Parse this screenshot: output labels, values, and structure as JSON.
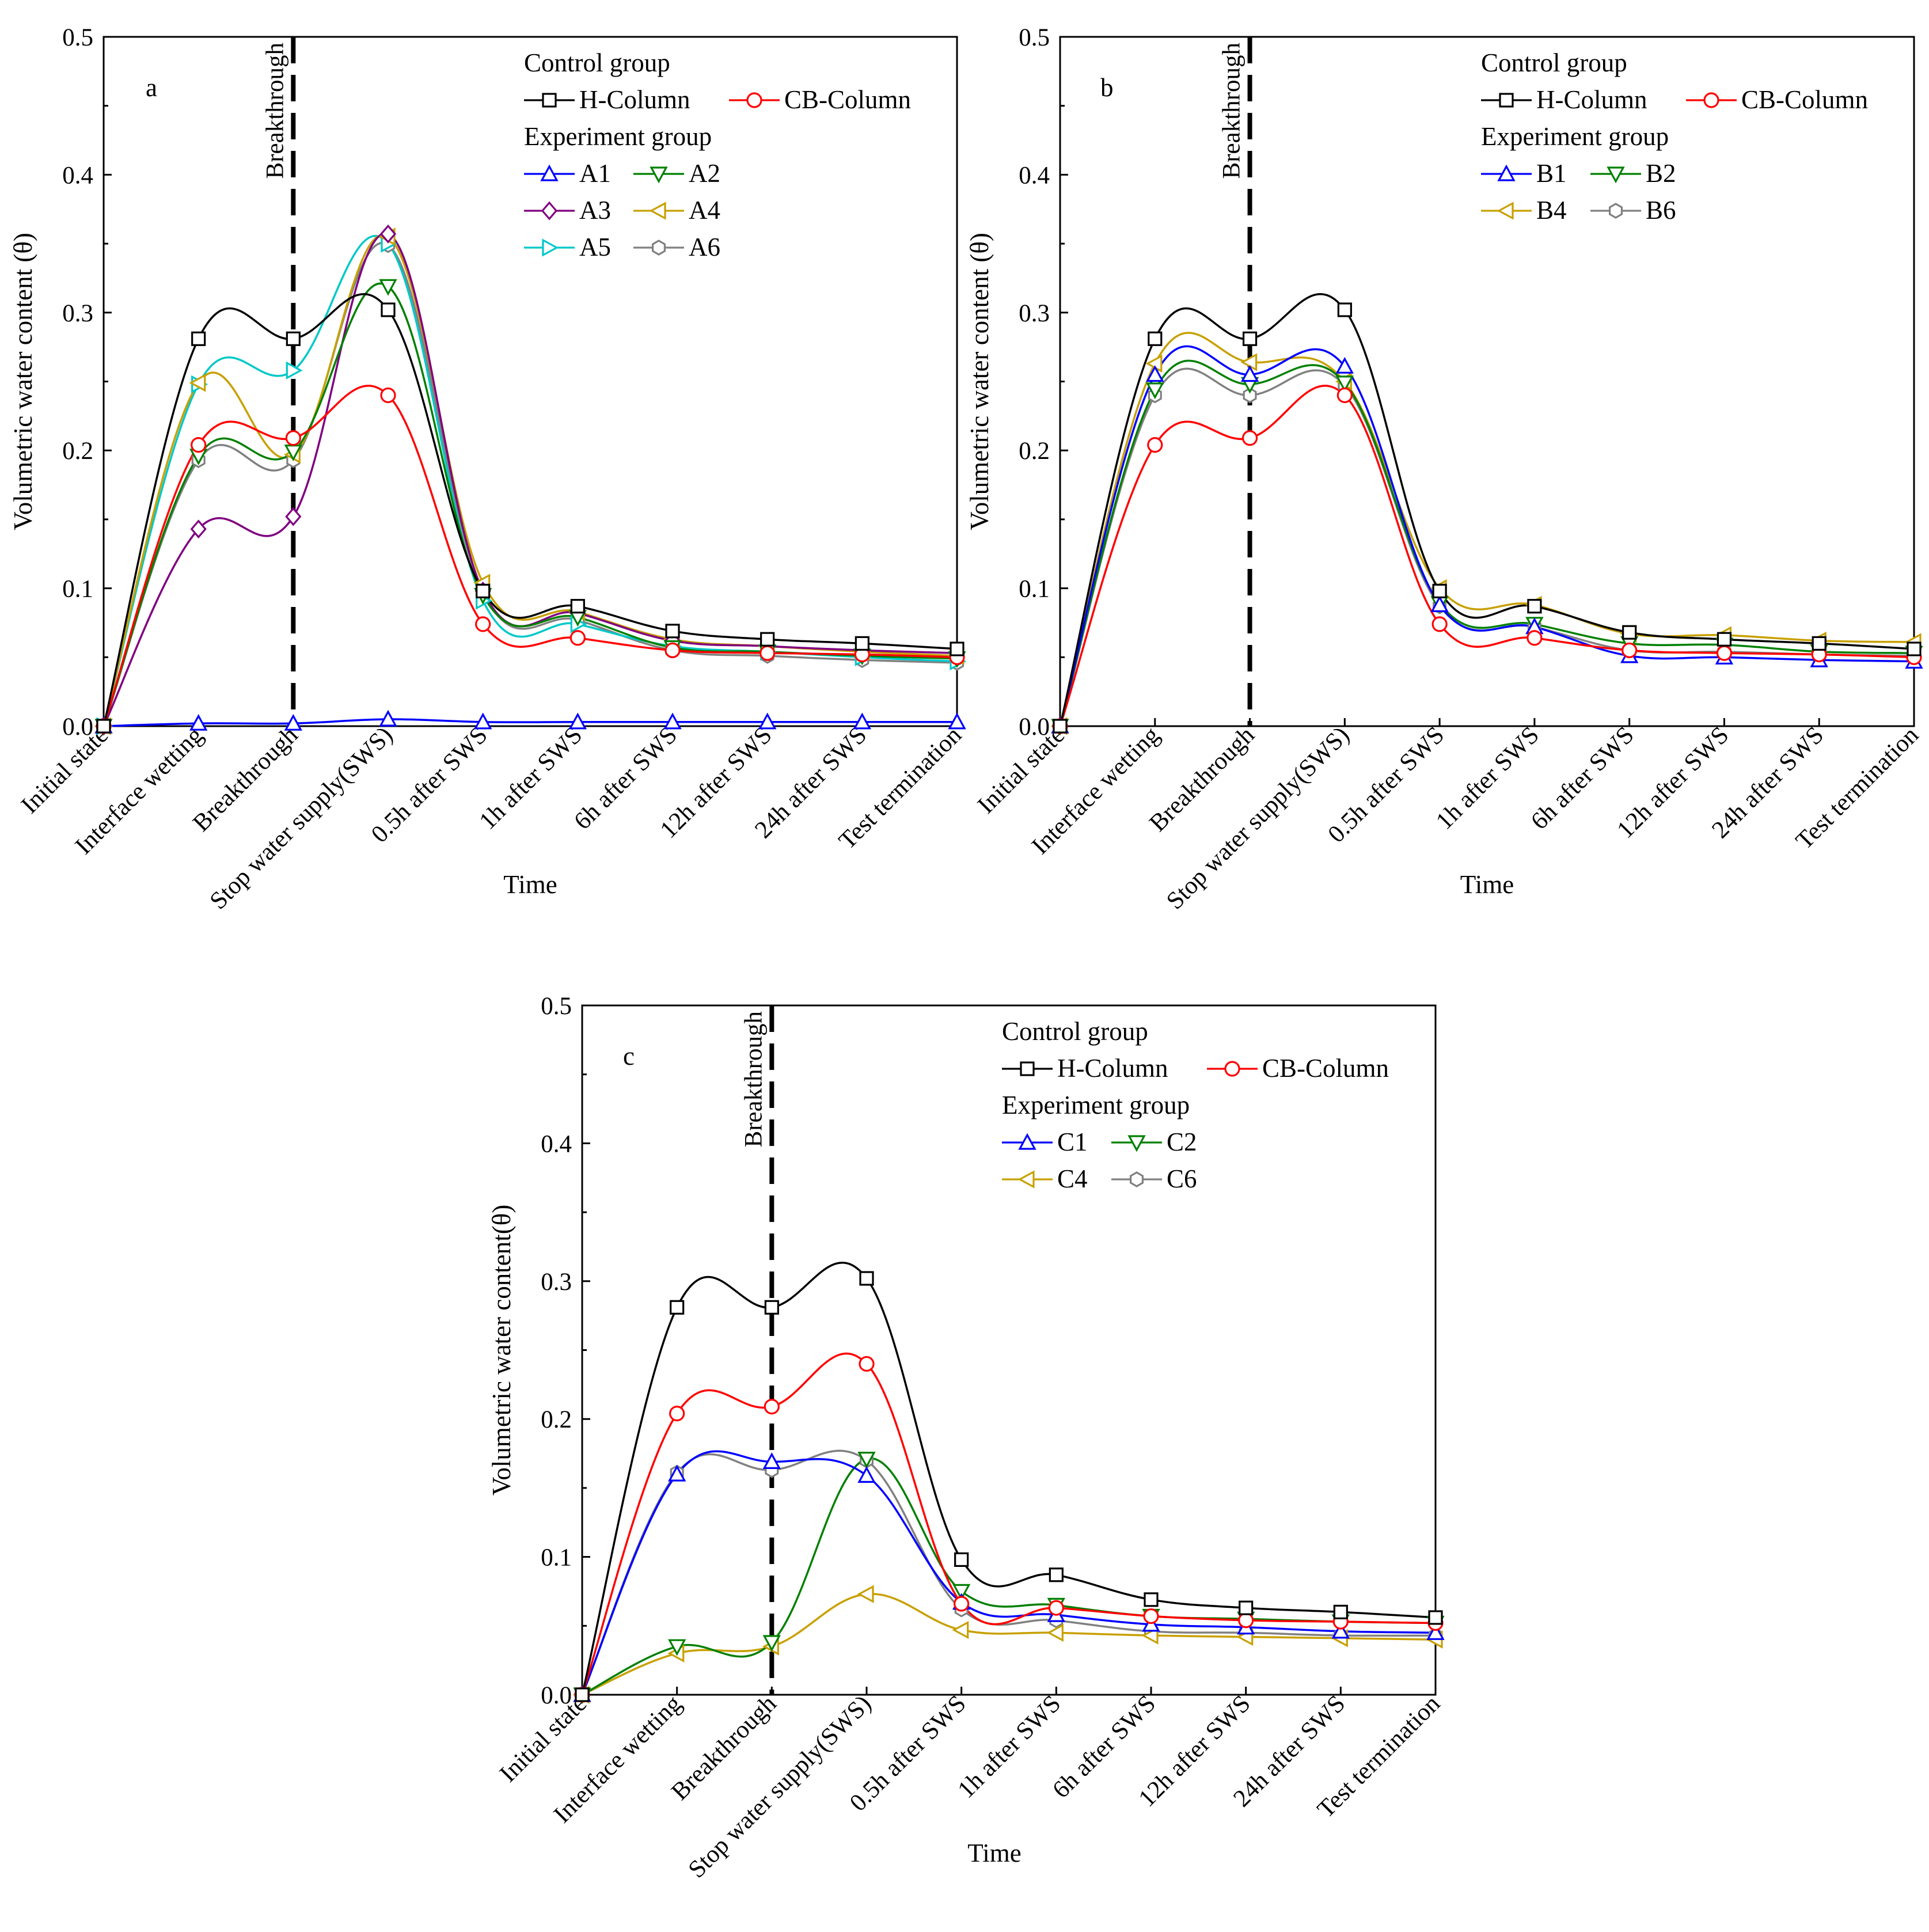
{
  "chart_data": [
    {
      "type": "line",
      "panel_label": "a",
      "title": "",
      "xlabel": "Time",
      "ylabel": "Volumetric water content (θ)",
      "ylim": [
        0,
        0.5
      ],
      "yticks": [
        "0.0",
        "0.1",
        "0.2",
        "0.3",
        "0.4",
        "0.5"
      ],
      "categories": [
        "Initial state",
        "Interface wetting",
        "Breakthrough",
        "Stop water supply(SWS)",
        "0.5h after SWS",
        "1h after SWS",
        "6h after SWS",
        "12h after SWS",
        "24h after SWS",
        "Test termination"
      ],
      "vline": {
        "label": "Breakthrough",
        "x_index": 2
      },
      "legend": {
        "position": "top-right",
        "control_title": "Control group",
        "experiment_title": "Experiment group",
        "control_names": [
          "H-Column",
          "CB-Column"
        ],
        "experiment_rows": [
          [
            "A1",
            "A2"
          ],
          [
            "A3",
            "A4"
          ],
          [
            "A5",
            "A6"
          ]
        ]
      },
      "series": [
        {
          "name": "H-Column",
          "color": "#000000",
          "marker": "square",
          "values": [
            0,
            0.281,
            0.281,
            0.302,
            0.098,
            0.087,
            0.069,
            0.063,
            0.06,
            0.056
          ]
        },
        {
          "name": "CB-Column",
          "color": "#ff0000",
          "marker": "circle",
          "values": [
            0,
            0.204,
            0.209,
            0.24,
            0.074,
            0.064,
            0.055,
            0.053,
            0.052,
            0.05
          ]
        },
        {
          "name": "A1",
          "color": "#0000ff",
          "marker": "triangle-up",
          "values": [
            0,
            0.002,
            0.002,
            0.005,
            0.003,
            0.003,
            0.003,
            0.003,
            0.003,
            0.003
          ]
        },
        {
          "name": "A2",
          "color": "#008000",
          "marker": "triangle-down",
          "values": [
            0,
            0.196,
            0.199,
            0.319,
            0.095,
            0.079,
            0.057,
            0.054,
            0.051,
            0.049
          ]
        },
        {
          "name": "A3",
          "color": "#800080",
          "marker": "diamond",
          "values": [
            0,
            0.143,
            0.152,
            0.357,
            0.098,
            0.082,
            0.062,
            0.058,
            0.055,
            0.053
          ]
        },
        {
          "name": "A4",
          "color": "#c8a000",
          "marker": "triangle-left",
          "values": [
            0,
            0.249,
            0.197,
            0.355,
            0.104,
            0.083,
            0.063,
            0.058,
            0.054,
            0.051
          ]
        },
        {
          "name": "A5",
          "color": "#00c8c8",
          "marker": "triangle-right",
          "values": [
            0,
            0.248,
            0.258,
            0.35,
            0.091,
            0.074,
            0.058,
            0.054,
            0.05,
            0.047
          ]
        },
        {
          "name": "A6",
          "color": "#808080",
          "marker": "hexagon",
          "values": [
            0,
            0.193,
            0.193,
            0.349,
            0.097,
            0.077,
            0.055,
            0.051,
            0.048,
            0.046
          ]
        }
      ]
    },
    {
      "type": "line",
      "panel_label": "b",
      "title": "",
      "xlabel": "Time",
      "ylabel": "Volumetric water content (θ)",
      "ylim": [
        0,
        0.5
      ],
      "yticks": [
        "0.0",
        "0.1",
        "0.2",
        "0.3",
        "0.4",
        "0.5"
      ],
      "categories": [
        "Initial state",
        "Interface wetting",
        "Breakthrough",
        "Stop water supply(SWS)",
        "0.5h after SWS",
        "1h after SWS",
        "6h after SWS",
        "12h after SWS",
        "24h after SWS",
        "Test termination"
      ],
      "vline": {
        "label": "Breakthrough",
        "x_index": 2
      },
      "legend": {
        "position": "top-right",
        "control_title": "Control group",
        "experiment_title": "Experiment group",
        "control_names": [
          "H-Column",
          "CB-Column"
        ],
        "experiment_rows": [
          [
            "B1",
            "B2"
          ],
          [
            "B4",
            "B6"
          ]
        ]
      },
      "series": [
        {
          "name": "H-Column",
          "color": "#000000",
          "marker": "square",
          "values": [
            0,
            0.281,
            0.281,
            0.302,
            0.098,
            0.087,
            0.068,
            0.063,
            0.06,
            0.056
          ]
        },
        {
          "name": "CB-Column",
          "color": "#ff0000",
          "marker": "circle",
          "values": [
            0,
            0.204,
            0.209,
            0.24,
            0.074,
            0.064,
            0.055,
            0.053,
            0.052,
            0.05
          ]
        },
        {
          "name": "B1",
          "color": "#0000ff",
          "marker": "triangle-up",
          "values": [
            0,
            0.255,
            0.255,
            0.261,
            0.088,
            0.072,
            0.051,
            0.05,
            0.048,
            0.047
          ]
        },
        {
          "name": "B2",
          "color": "#008000",
          "marker": "triangle-down",
          "values": [
            0,
            0.244,
            0.248,
            0.249,
            0.089,
            0.074,
            0.06,
            0.059,
            0.054,
            0.053
          ]
        },
        {
          "name": "B4",
          "color": "#c8a000",
          "marker": "triangle-left",
          "values": [
            0,
            0.263,
            0.264,
            0.25,
            0.1,
            0.088,
            0.067,
            0.066,
            0.062,
            0.061
          ]
        },
        {
          "name": "B6",
          "color": "#808080",
          "marker": "hexagon",
          "values": [
            0,
            0.24,
            0.24,
            0.247,
            0.087,
            0.072,
            0.055,
            0.054,
            0.052,
            0.051
          ]
        }
      ]
    },
    {
      "type": "line",
      "panel_label": "c",
      "title": "",
      "xlabel": "Time",
      "ylabel": "Volumetric water content(θ)",
      "ylim": [
        0,
        0.5
      ],
      "yticks": [
        "0.0",
        "0.1",
        "0.2",
        "0.3",
        "0.4",
        "0.5"
      ],
      "categories": [
        "Initial state",
        "Interface wetting",
        "Breakthrough",
        "Stop water supply(SWS)",
        "0.5h after SWS",
        "1h after SWS",
        "6h after SWS",
        "12h after SWS",
        "24h after SWS",
        "Test termination"
      ],
      "vline": {
        "label": "Breakthrough",
        "x_index": 2
      },
      "legend": {
        "position": "top-right",
        "control_title": "Control group",
        "experiment_title": "Experiment group",
        "control_names": [
          "H-Column",
          "CB-Column"
        ],
        "experiment_rows": [
          [
            "C1",
            "C2"
          ],
          [
            "C4",
            "C6"
          ]
        ]
      },
      "series": [
        {
          "name": "H-Column",
          "color": "#000000",
          "marker": "square",
          "values": [
            0,
            0.281,
            0.281,
            0.302,
            0.098,
            0.087,
            0.069,
            0.063,
            0.06,
            0.056
          ]
        },
        {
          "name": "CB-Column",
          "color": "#ff0000",
          "marker": "circle",
          "values": [
            0,
            0.204,
            0.209,
            0.24,
            0.066,
            0.063,
            0.057,
            0.054,
            0.053,
            0.052
          ]
        },
        {
          "name": "C1",
          "color": "#0000ff",
          "marker": "triangle-up",
          "values": [
            0,
            0.16,
            0.169,
            0.159,
            0.067,
            0.058,
            0.051,
            0.049,
            0.046,
            0.045
          ]
        },
        {
          "name": "C2",
          "color": "#008000",
          "marker": "triangle-down",
          "values": [
            0,
            0.035,
            0.038,
            0.171,
            0.075,
            0.065,
            0.057,
            0.055,
            0.053,
            0.052
          ]
        },
        {
          "name": "C4",
          "color": "#c8a000",
          "marker": "triangle-left",
          "values": [
            0,
            0.03,
            0.035,
            0.073,
            0.047,
            0.045,
            0.043,
            0.042,
            0.041,
            0.04
          ]
        },
        {
          "name": "C6",
          "color": "#808080",
          "marker": "hexagon",
          "values": [
            0,
            0.161,
            0.163,
            0.17,
            0.062,
            0.054,
            0.046,
            0.045,
            0.043,
            0.043
          ]
        }
      ]
    }
  ]
}
